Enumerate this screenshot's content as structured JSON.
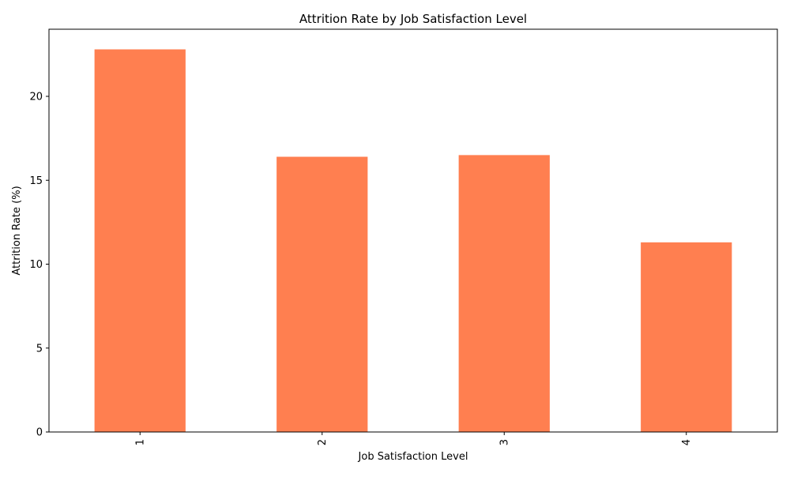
{
  "chart_data": {
    "type": "bar",
    "title": "Attrition Rate by Job Satisfaction Level",
    "xlabel": "Job Satisfaction Level",
    "ylabel": "Attrition Rate (%)",
    "categories": [
      "1",
      "2",
      "3",
      "4"
    ],
    "values": [
      22.8,
      16.4,
      16.5,
      11.3
    ],
    "ylim": [
      0,
      24
    ],
    "yticks": [
      0,
      5,
      10,
      15,
      20
    ],
    "bar_color": "#ff7f50",
    "grid": false,
    "legend": "none"
  }
}
